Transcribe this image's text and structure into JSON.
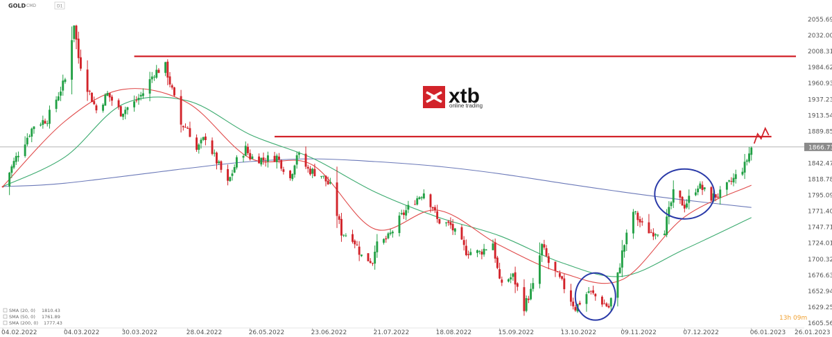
{
  "header": {
    "symbol": "GOLD",
    "type": "CMD",
    "interval": "D1"
  },
  "logo": {
    "brand": "xtb",
    "tagline": "online trading"
  },
  "current_price": "1866.73",
  "countdown": "13h 09m",
  "indicators": [
    {
      "label": "SMA (20, 0)",
      "value": "1810.43",
      "color": "#e04a4a"
    },
    {
      "label": "SMA (50, 0)",
      "value": "1761.89",
      "color": "#3aaa6e"
    },
    {
      "label": "SMA (200, 0)",
      "value": "1777.43",
      "color": "#6a78b8"
    }
  ],
  "colors": {
    "up": "#22a045",
    "down": "#d2232a",
    "resistance": "#d2232a",
    "circle": "#2a3aa8",
    "price_line": "#9a9a9a"
  },
  "chart_data": {
    "type": "candlestick",
    "title": "GOLD",
    "ylim": [
      1600,
      2070
    ],
    "y_ticks": [
      "2055.69",
      "2032.00",
      "2008.31",
      "1984.62",
      "1960.93",
      "1937.23",
      "1913.54",
      "1889.85",
      "1866.73",
      "1842.47",
      "1818.78",
      "1795.09",
      "1771.40",
      "1747.71",
      "1724.01",
      "1700.32",
      "1676.63",
      "1652.94",
      "1629.25",
      "1605.56"
    ],
    "x_ticks": [
      "04.02.2022",
      "04.03.2022",
      "30.03.2022",
      "28.04.2022",
      "26.05.2022",
      "23.06.2022",
      "21.07.2022",
      "18.08.2022",
      "15.09.2022",
      "13.10.2022",
      "09.11.2022",
      "07.12.2022",
      "06.01.2023",
      "26.01.2023"
    ],
    "x_range": [
      "04.02.2022",
      "26.01.2023"
    ],
    "close_path": [
      [
        "04.02.2022",
        1808
      ],
      [
        "11.02.2022",
        1858
      ],
      [
        "18.02.2022",
        1899
      ],
      [
        "24.02.2022",
        1908
      ],
      [
        "01.03.2022",
        1945
      ],
      [
        "04.03.2022",
        1966
      ],
      [
        "08.03.2022",
        2050
      ],
      [
        "10.03.2022",
        1999
      ],
      [
        "14.03.2022",
        1955
      ],
      [
        "18.03.2022",
        1921
      ],
      [
        "23.03.2022",
        1945
      ],
      [
        "29.03.2022",
        1918
      ],
      [
        "04.04.2022",
        1932
      ],
      [
        "08.04.2022",
        1947
      ],
      [
        "13.04.2022",
        1977
      ],
      [
        "18.04.2022",
        1986
      ],
      [
        "21.04.2022",
        1950
      ],
      [
        "25.04.2022",
        1900
      ],
      [
        "28.04.2022",
        1895
      ],
      [
        "02.05.2022",
        1862
      ],
      [
        "06.05.2022",
        1882
      ],
      [
        "10.05.2022",
        1852
      ],
      [
        "16.05.2022",
        1812
      ],
      [
        "20.05.2022",
        1846
      ],
      [
        "24.05.2022",
        1864
      ],
      [
        "26.05.2022",
        1852
      ],
      [
        "01.06.2022",
        1848
      ],
      [
        "07.06.2022",
        1852
      ],
      [
        "13.06.2022",
        1820
      ],
      [
        "16.06.2022",
        1857
      ],
      [
        "21.06.2022",
        1833
      ],
      [
        "27.06.2022",
        1825
      ],
      [
        "01.07.2022",
        1808
      ],
      [
        "06.07.2022",
        1740
      ],
      [
        "11.07.2022",
        1733
      ],
      [
        "15.07.2022",
        1705
      ],
      [
        "20.07.2022",
        1697
      ],
      [
        "21.07.2022",
        1718
      ],
      [
        "27.07.2022",
        1732
      ],
      [
        "02.08.2022",
        1764
      ],
      [
        "08.08.2022",
        1788
      ],
      [
        "12.08.2022",
        1800
      ],
      [
        "16.08.2022",
        1778
      ],
      [
        "18.08.2022",
        1758
      ],
      [
        "24.08.2022",
        1750
      ],
      [
        "31.08.2022",
        1712
      ],
      [
        "06.09.2022",
        1710
      ],
      [
        "12.09.2022",
        1725
      ],
      [
        "15.09.2022",
        1665
      ],
      [
        "21.09.2022",
        1675
      ],
      [
        "26.09.2022",
        1630
      ],
      [
        "30.09.2022",
        1660
      ],
      [
        "04.10.2022",
        1720
      ],
      [
        "07.10.2022",
        1695
      ],
      [
        "13.10.2022",
        1665
      ],
      [
        "19.10.2022",
        1628
      ],
      [
        "25.10.2022",
        1653
      ],
      [
        "28.10.2022",
        1645
      ],
      [
        "03.11.2022",
        1629
      ],
      [
        "07.11.2022",
        1676
      ],
      [
        "09.11.2022",
        1710
      ],
      [
        "14.11.2022",
        1771
      ],
      [
        "18.11.2022",
        1750
      ],
      [
        "22.11.2022",
        1740
      ],
      [
        "28.11.2022",
        1745
      ],
      [
        "02.12.2022",
        1797
      ],
      [
        "07.12.2022",
        1780
      ],
      [
        "13.12.2022",
        1810
      ],
      [
        "19.12.2022",
        1792
      ],
      [
        "23.12.2022",
        1797
      ],
      [
        "28.12.2022",
        1815
      ],
      [
        "03.01.2023",
        1839
      ],
      [
        "06.01.2023",
        1866
      ]
    ],
    "sma20_path": [
      [
        "04.02.2022",
        1808
      ],
      [
        "04.03.2022",
        1905
      ],
      [
        "30.03.2022",
        1952
      ],
      [
        "28.04.2022",
        1932
      ],
      [
        "26.05.2022",
        1850
      ],
      [
        "23.06.2022",
        1840
      ],
      [
        "21.07.2022",
        1745
      ],
      [
        "18.08.2022",
        1773
      ],
      [
        "15.09.2022",
        1721
      ],
      [
        "13.10.2022",
        1680
      ],
      [
        "09.11.2022",
        1670
      ],
      [
        "07.12.2022",
        1763
      ],
      [
        "06.01.2023",
        1810
      ]
    ],
    "sma50_path": [
      [
        "04.02.2022",
        1808
      ],
      [
        "04.03.2022",
        1852
      ],
      [
        "30.03.2022",
        1930
      ],
      [
        "28.04.2022",
        1935
      ],
      [
        "26.05.2022",
        1885
      ],
      [
        "23.06.2022",
        1850
      ],
      [
        "21.07.2022",
        1800
      ],
      [
        "18.08.2022",
        1763
      ],
      [
        "15.09.2022",
        1735
      ],
      [
        "13.10.2022",
        1695
      ],
      [
        "09.11.2022",
        1675
      ],
      [
        "07.12.2022",
        1715
      ],
      [
        "06.01.2023",
        1762
      ]
    ],
    "sma200_path": [
      [
        "04.02.2022",
        1808
      ],
      [
        "04.03.2022",
        1813
      ],
      [
        "28.04.2022",
        1835
      ],
      [
        "26.05.2022",
        1845
      ],
      [
        "23.06.2022",
        1849
      ],
      [
        "21.07.2022",
        1845
      ],
      [
        "18.08.2022",
        1838
      ],
      [
        "15.09.2022",
        1827
      ],
      [
        "13.10.2022",
        1813
      ],
      [
        "09.11.2022",
        1800
      ],
      [
        "07.12.2022",
        1788
      ],
      [
        "06.01.2023",
        1777
      ]
    ],
    "resistance_lines": [
      {
        "value": 2001,
        "from": "04.04.2022",
        "to": "26.01.2023"
      },
      {
        "value": 1882,
        "from": "06.06.2022",
        "to": "15.01.2023"
      }
    ],
    "highlight_circles": [
      {
        "center": [
          "28.10.2022",
          1645
        ]
      },
      {
        "center": [
          "07.12.2022",
          1797
        ]
      }
    ],
    "grid": false
  }
}
